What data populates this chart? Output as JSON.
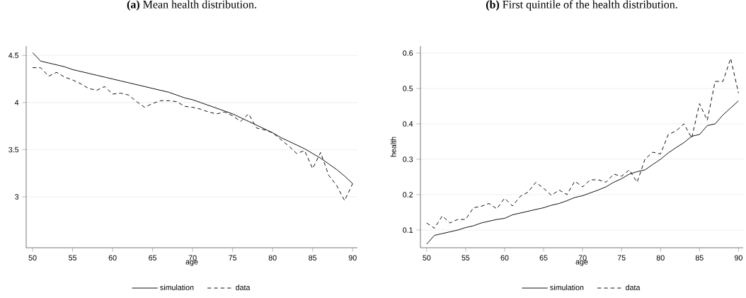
{
  "chart_data": [
    {
      "type": "line",
      "title": "**(a)** Mean health distribution.",
      "xlabel": "age",
      "x": [
        50,
        51,
        52,
        53,
        54,
        55,
        56,
        57,
        58,
        59,
        60,
        61,
        62,
        63,
        64,
        65,
        66,
        67,
        68,
        69,
        70,
        71,
        72,
        73,
        74,
        75,
        76,
        77,
        78,
        79,
        80,
        81,
        82,
        83,
        84,
        85,
        86,
        87,
        88,
        89,
        90
      ],
      "series": [
        {
          "name": "simulation",
          "color": "#000000",
          "line_style": "solid",
          "values": [
            4.53,
            4.44,
            4.42,
            4.4,
            4.38,
            4.35,
            4.33,
            4.31,
            4.29,
            4.27,
            4.25,
            4.23,
            4.21,
            4.19,
            4.17,
            4.15,
            4.13,
            4.11,
            4.08,
            4.05,
            4.03,
            4.0,
            3.97,
            3.94,
            3.91,
            3.88,
            3.84,
            3.8,
            3.76,
            3.72,
            3.68,
            3.63,
            3.59,
            3.55,
            3.51,
            3.46,
            3.41,
            3.35,
            3.29,
            3.22,
            3.14
          ]
        },
        {
          "name": "data",
          "color": "#000000",
          "line_style": "dashed",
          "values": [
            4.37,
            4.37,
            4.28,
            4.32,
            4.27,
            4.24,
            4.2,
            4.15,
            4.13,
            4.17,
            4.09,
            4.1,
            4.08,
            4.01,
            3.95,
            3.99,
            4.02,
            4.02,
            4.01,
            3.96,
            3.95,
            3.93,
            3.9,
            3.88,
            3.9,
            3.86,
            3.8,
            3.88,
            3.73,
            3.71,
            3.68,
            3.61,
            3.54,
            3.46,
            3.49,
            3.3,
            3.47,
            3.23,
            3.12,
            2.96,
            3.14
          ]
        }
      ],
      "xlim": [
        49.2,
        90.6
      ],
      "ylim": [
        2.46,
        4.6
      ],
      "xticks": [
        50,
        55,
        60,
        65,
        70,
        75,
        80,
        85,
        90
      ],
      "yticks": [
        3,
        3.5,
        4,
        4.5
      ],
      "grid": "y",
      "legend": "bottom"
    },
    {
      "type": "line",
      "title": "**(b)** First quintile of the health distribution.",
      "xlabel": "age",
      "ylabel": "health",
      "x": [
        50,
        51,
        52,
        53,
        54,
        55,
        56,
        57,
        58,
        59,
        60,
        61,
        62,
        63,
        64,
        65,
        66,
        67,
        68,
        69,
        70,
        71,
        72,
        73,
        74,
        75,
        76,
        77,
        78,
        79,
        80,
        81,
        82,
        83,
        84,
        85,
        86,
        87,
        88,
        89,
        90
      ],
      "series": [
        {
          "name": "simulation",
          "color": "#000000",
          "line_style": "solid",
          "values": [
            0.06,
            0.085,
            0.09,
            0.095,
            0.1,
            0.107,
            0.112,
            0.12,
            0.125,
            0.13,
            0.133,
            0.143,
            0.148,
            0.153,
            0.158,
            0.163,
            0.17,
            0.175,
            0.183,
            0.192,
            0.197,
            0.205,
            0.213,
            0.222,
            0.235,
            0.245,
            0.258,
            0.265,
            0.27,
            0.285,
            0.3,
            0.318,
            0.333,
            0.347,
            0.365,
            0.37,
            0.395,
            0.4,
            0.425,
            0.445,
            0.465
          ]
        },
        {
          "name": "data",
          "color": "#000000",
          "line_style": "dashed",
          "values": [
            0.12,
            0.105,
            0.14,
            0.12,
            0.13,
            0.13,
            0.163,
            0.167,
            0.175,
            0.16,
            0.19,
            0.168,
            0.195,
            0.207,
            0.235,
            0.218,
            0.198,
            0.213,
            0.2,
            0.238,
            0.222,
            0.242,
            0.242,
            0.235,
            0.258,
            0.252,
            0.27,
            0.235,
            0.3,
            0.32,
            0.315,
            0.37,
            0.38,
            0.4,
            0.36,
            0.457,
            0.41,
            0.52,
            0.52,
            0.585,
            0.487
          ]
        }
      ],
      "xlim": [
        49.2,
        90.6
      ],
      "ylim": [
        0.05,
        0.62
      ],
      "xticks": [
        50,
        55,
        60,
        65,
        70,
        75,
        80,
        85,
        90
      ],
      "yticks": [
        0.1,
        0.2,
        0.3,
        0.4,
        0.5,
        0.6
      ],
      "grid": "y",
      "legend": "bottom"
    }
  ]
}
